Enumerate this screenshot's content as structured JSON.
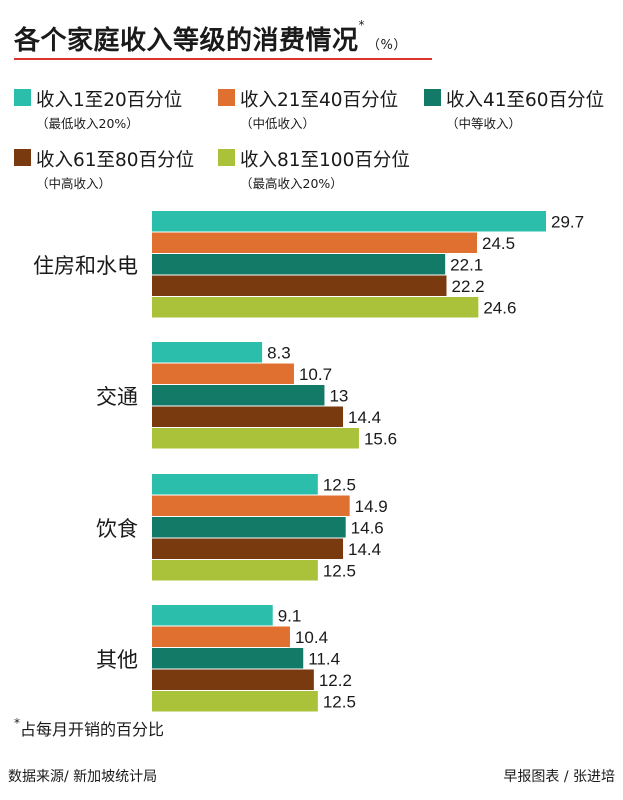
{
  "title": "各个家庭收入等级的消费情况",
  "title_mark": "*",
  "unit": "（%）",
  "legend": [
    {
      "label": "收入1至20百分位",
      "sub": "（最低收入20%）",
      "color": "#2bbfab"
    },
    {
      "label": "收入21至40百分位",
      "sub": "（中低收入）",
      "color": "#e07030"
    },
    {
      "label": "收入41至60百分位",
      "sub": "（中等收入）",
      "color": "#127a66"
    },
    {
      "label": "收入61至80百分位",
      "sub": "（中高收入）",
      "color": "#7a3a10"
    },
    {
      "label": "收入81至100百分位",
      "sub": "（最高收入20%）",
      "color": "#a9c23a"
    }
  ],
  "chart_data": {
    "type": "bar",
    "orientation": "horizontal",
    "categories": [
      "住房和水电",
      "交通",
      "饮食",
      "其他"
    ],
    "series": [
      {
        "name": "收入1至20百分位",
        "values": [
          29.7,
          8.3,
          12.5,
          9.1
        ]
      },
      {
        "name": "收入21至40百分位",
        "values": [
          24.5,
          10.7,
          14.9,
          10.4
        ]
      },
      {
        "name": "收入41至60百分位",
        "values": [
          22.1,
          13,
          14.6,
          11.4
        ]
      },
      {
        "name": "收入61至80百分位",
        "values": [
          22.2,
          14.4,
          14.4,
          12.2
        ]
      },
      {
        "name": "收入81至100百分位",
        "values": [
          24.6,
          15.6,
          12.5,
          12.5
        ]
      }
    ],
    "value_labels": [
      [
        "29.7",
        "8.3",
        "12.5",
        "9.1"
      ],
      [
        "24.5",
        "10.7",
        "14.9",
        "10.4"
      ],
      [
        "22.1",
        "13",
        "14.6",
        "11.4"
      ],
      [
        "22.2",
        "14.4",
        "14.4",
        "12.2"
      ],
      [
        "24.6",
        "15.6",
        "12.5",
        "12.5"
      ]
    ],
    "xlim": [
      0,
      29.7
    ],
    "grid": false,
    "legend_position": "top"
  },
  "footnote_mark": "*",
  "footnote": "占每月开销的百分比",
  "source": "数据来源/ 新加坡统计局",
  "credit": "早报图表 / 张进培"
}
